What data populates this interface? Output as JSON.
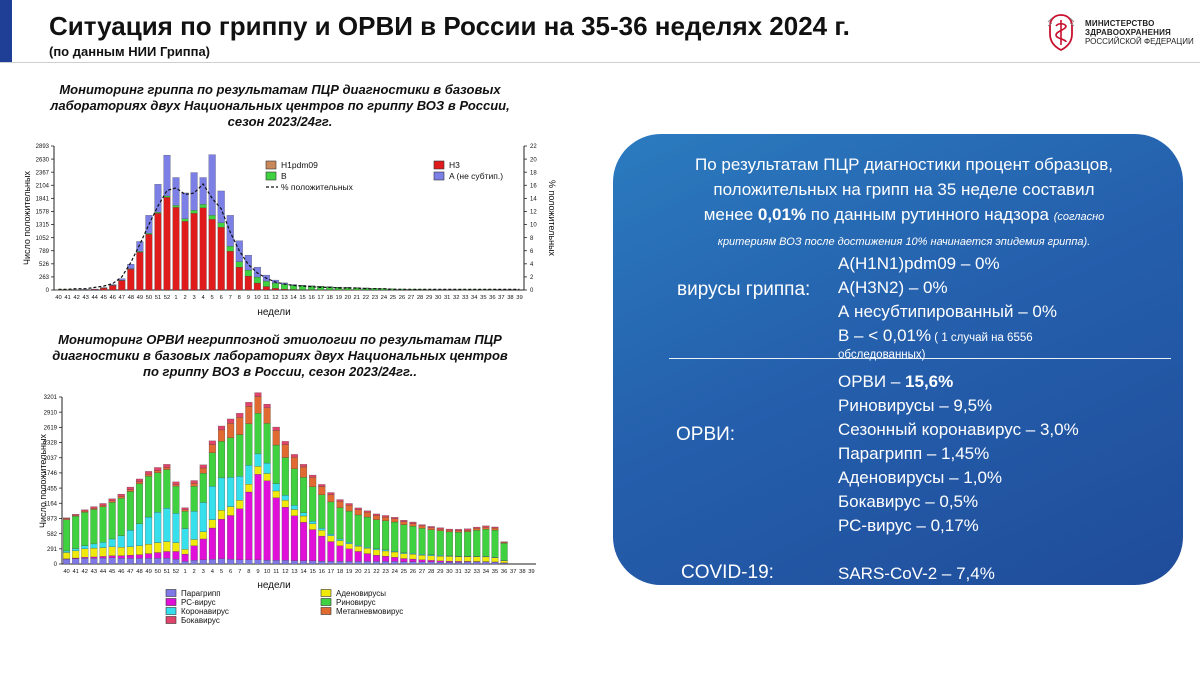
{
  "header": {
    "title": "Ситуация по гриппу и ОРВИ в России на 35-36 неделях 2024 г.",
    "subtitle": "(по данным НИИ Гриппа)",
    "logo": {
      "line1": "МИНИСТЕРСТВО",
      "line2": "ЗДРАВООХРАНЕНИЯ",
      "line3": "РОССИЙСКОЙ ФЕДЕРАЦИИ",
      "icon": "ministry-emblem-icon"
    }
  },
  "chart1": {
    "title_l1": "Мониторинг гриппа по результатам ПЦР диагностики в базовых",
    "title_l2": "лабораториях двух Национальных центров по гриппу ВОЗ в России,",
    "title_l3": "сезон 2023/24гг.",
    "ylabel": "Число положительных",
    "y2label": "% положительных",
    "xlabel": "недели",
    "legend": {
      "h1": "H1pdm09",
      "b": "B",
      "pct": "% положительных",
      "h3": "H3",
      "a": "A (не субтип.)"
    }
  },
  "chart2": {
    "title_l1": "Мониторинг ОРВИ негриппозной этиологии по результатам ПЦР",
    "title_l2": "диагностики в базовых лабораториях двух Национальных центров",
    "title_l3": "по гриппу ВОЗ в России, сезон 2023/24гг..",
    "ylabel": "Число положительных",
    "xlabel": "недели",
    "legend": {
      "paragripp": "Парагрипп",
      "rs": "РС-вирус",
      "corona": "Коронавирус",
      "boka": "Бокавирус",
      "adeno": "Аденовирусы",
      "rino": "Риновирус",
      "metapn": "Метапневмовирус"
    }
  },
  "panel": {
    "intro_a": "По результатам ПЦР диагностики процент образцов,",
    "intro_b": "положительных на грипп на 35 неделе составил",
    "intro_c1": "менее ",
    "intro_c2": "0,01%",
    "intro_c3": " по данным рутинного надзора ",
    "intro_c4": "(согласно",
    "intro_d": "критериям ВОЗ после достижения 10% начинается эпидемия гриппа).",
    "flu_label": "вирусы гриппа:",
    "flu_items": [
      "A(H1N1)pdm09 – 0%",
      "A(H3N2) – 0%",
      "А несубтипированный – 0%"
    ],
    "flu_b": "В – < 0,01%",
    "flu_b_note": " ( 1 случай на 6556",
    "flu_b_note2": "обследованных)",
    "orvi_label": "ОРВИ:",
    "orvi_total_a": "ОРВИ – ",
    "orvi_total_b": "15,6%",
    "orvi_items": [
      "Риновирусы – 9,5%",
      "Сезонный коронавирус – 3,0%",
      "Парагрипп – 1,45%",
      "Аденовирусы – 1,0%",
      "Бокавирус – 0,5%",
      "РС-вирус – 0,17%"
    ],
    "covid_label": "COVID-19:",
    "covid_value": "SARS-CoV-2 – 7,4%"
  },
  "chart_data": [
    {
      "type": "bar",
      "stacked": true,
      "title": "Мониторинг гриппа по результатам ПЦР диагностики в базовых лабораториях двух Национальных центров по гриппу ВОЗ в России, сезон 2023/24гг.",
      "xlabel": "недели",
      "ylabel": "Число положительных",
      "y2label": "% положительных",
      "ylim": [
        0,
        2893
      ],
      "y_ticks": [
        0,
        263,
        526,
        789,
        1052,
        1315,
        1578,
        1841,
        2104,
        2367,
        2630,
        2893
      ],
      "y2lim": [
        0,
        22
      ],
      "y2_ticks": [
        0,
        2,
        4,
        6,
        8,
        10,
        12,
        14,
        16,
        18,
        20,
        22
      ],
      "categories": [
        "40",
        "41",
        "42",
        "43",
        "44",
        "45",
        "46",
        "47",
        "48",
        "49",
        "50",
        "51",
        "52",
        "1",
        "2",
        "3",
        "4",
        "5",
        "6",
        "7",
        "8",
        "9",
        "10",
        "11",
        "12",
        "13",
        "14",
        "15",
        "16",
        "17",
        "18",
        "19",
        "20",
        "21",
        "22",
        "23",
        "24",
        "25",
        "26",
        "27",
        "28",
        "29",
        "30",
        "31",
        "32",
        "33",
        "34",
        "35",
        "36",
        "37",
        "38",
        "39"
      ],
      "series": [
        {
          "name": "H1pdm09",
          "color": "#c8885a",
          "values": [
            0,
            0,
            0,
            0,
            0,
            0,
            0,
            0,
            0,
            0,
            0,
            0,
            0,
            0,
            0,
            0,
            0,
            0,
            0,
            0,
            0,
            0,
            0,
            0,
            0,
            0,
            0,
            0,
            0,
            0,
            0,
            0,
            0,
            0,
            0,
            0,
            0,
            0,
            0,
            0,
            0,
            0,
            0,
            0,
            0,
            0,
            0,
            0,
            0,
            0,
            0,
            0
          ]
        },
        {
          "name": "H3",
          "color": "#e01b1b",
          "values": [
            2,
            3,
            5,
            8,
            15,
            40,
            90,
            190,
            420,
            760,
            1120,
            1540,
            1860,
            1660,
            1380,
            1540,
            1650,
            1420,
            1260,
            780,
            460,
            280,
            140,
            70,
            35,
            18,
            10,
            6,
            4,
            2,
            2,
            1,
            1,
            1,
            0,
            0,
            0,
            0,
            0,
            0,
            0,
            0,
            0,
            0,
            0,
            0,
            0,
            0,
            0,
            0,
            0,
            0
          ]
        },
        {
          "name": "B",
          "color": "#3fd13f",
          "values": [
            1,
            1,
            2,
            2,
            3,
            4,
            6,
            8,
            10,
            15,
            20,
            25,
            30,
            40,
            50,
            60,
            70,
            80,
            90,
            100,
            110,
            120,
            120,
            110,
            105,
            95,
            85,
            80,
            75,
            70,
            60,
            55,
            50,
            45,
            40,
            35,
            30,
            25,
            20,
            15,
            12,
            10,
            8,
            6,
            5,
            4,
            3,
            2,
            1,
            0,
            0,
            0
          ]
        },
        {
          "name": "A (не субтип.)",
          "color": "#7b7fe6",
          "values": [
            0,
            0,
            0,
            1,
            2,
            6,
            14,
            30,
            90,
            200,
            360,
            560,
            820,
            560,
            520,
            760,
            540,
            1220,
            640,
            620,
            420,
            300,
            200,
            120,
            60,
            30,
            15,
            10,
            6,
            4,
            3,
            2,
            2,
            1,
            1,
            0,
            0,
            0,
            0,
            0,
            0,
            0,
            0,
            0,
            0,
            0,
            0,
            0,
            0,
            0,
            0,
            0
          ]
        }
      ],
      "line": {
        "name": "% положительных",
        "axis": "y2",
        "values": [
          0.1,
          0.1,
          0.2,
          0.2,
          0.4,
          0.6,
          1.0,
          2.0,
          4.2,
          7.0,
          10.0,
          12.8,
          15.2,
          15.6,
          14.6,
          14.8,
          16.2,
          14.0,
          12.4,
          8.8,
          6.0,
          3.9,
          2.6,
          1.8,
          1.2,
          0.9,
          0.7,
          0.6,
          0.5,
          0.4,
          0.4,
          0.3,
          0.3,
          0.3,
          0.2,
          0.2,
          0.2,
          0.1,
          0.1,
          0.1,
          0.1,
          0.1,
          0.1,
          0.1,
          0.1,
          0.1,
          0.1,
          0.1,
          0.1,
          0.1,
          0.1,
          0.1
        ]
      },
      "legend": "top-right"
    },
    {
      "type": "bar",
      "stacked": true,
      "title": "Мониторинг ОРВИ негриппозной этиологии по результатам ПЦР диагностики в базовых лабораториях двух Национальных центров по гриппу ВОЗ в России, сезон 2023/24гг..",
      "xlabel": "недели",
      "ylabel": "Число положительных",
      "ylim": [
        0,
        3201
      ],
      "y_ticks": [
        0,
        291,
        582,
        873,
        1164,
        1455,
        1746,
        2037,
        2328,
        2619,
        2910,
        3201
      ],
      "categories": [
        "40",
        "41",
        "42",
        "43",
        "44",
        "45",
        "46",
        "47",
        "48",
        "49",
        "50",
        "51",
        "52",
        "1",
        "2",
        "3",
        "4",
        "5",
        "6",
        "7",
        "8",
        "9",
        "10",
        "11",
        "12",
        "13",
        "14",
        "15",
        "16",
        "17",
        "18",
        "19",
        "20",
        "21",
        "22",
        "23",
        "24",
        "25",
        "26",
        "27",
        "28",
        "29",
        "30",
        "31",
        "32",
        "33",
        "34",
        "35",
        "36",
        "37",
        "38",
        "39"
      ],
      "series": [
        {
          "name": "Парагрипп",
          "color": "#7f79e8",
          "values": [
            90,
            100,
            110,
            110,
            115,
            120,
            110,
            110,
            110,
            110,
            110,
            110,
            90,
            50,
            70,
            80,
            90,
            100,
            90,
            80,
            80,
            80,
            75,
            70,
            70,
            65,
            60,
            60,
            55,
            50,
            50,
            50,
            50,
            50,
            50,
            50,
            50,
            45,
            45,
            40,
            40,
            35,
            35,
            35,
            40,
            40,
            40,
            35,
            20,
            0,
            0,
            0
          ]
        },
        {
          "name": "РС-вирус",
          "color": "#e010d8",
          "values": [
            10,
            15,
            20,
            25,
            30,
            40,
            50,
            60,
            70,
            90,
            110,
            130,
            150,
            140,
            280,
            400,
            600,
            760,
            840,
            980,
            1300,
            1640,
            1520,
            1200,
            1020,
            860,
            740,
            600,
            480,
            380,
            300,
            240,
            190,
            150,
            120,
            100,
            80,
            60,
            50,
            40,
            30,
            25,
            20,
            15,
            10,
            8,
            6,
            5,
            3,
            0,
            0,
            0
          ]
        },
        {
          "name": "Аденовирусы",
          "color": "#f0ea0c",
          "values": [
            120,
            140,
            160,
            170,
            170,
            170,
            160,
            160,
            170,
            180,
            190,
            190,
            170,
            90,
            120,
            140,
            160,
            170,
            170,
            160,
            150,
            150,
            140,
            130,
            130,
            120,
            120,
            110,
            110,
            110,
            100,
            100,
            100,
            100,
            100,
            100,
            100,
            95,
            95,
            90,
            90,
            90,
            90,
            90,
            90,
            90,
            90,
            80,
            40,
            0,
            0,
            0
          ]
        },
        {
          "name": "Коронавирус",
          "color": "#35e0ec",
          "values": [
            30,
            40,
            60,
            80,
            100,
            150,
            220,
            320,
            420,
            520,
            580,
            640,
            560,
            400,
            540,
            560,
            640,
            620,
            560,
            460,
            360,
            240,
            200,
            140,
            100,
            80,
            60,
            50,
            40,
            30,
            30,
            25,
            20,
            20,
            20,
            20,
            15,
            15,
            15,
            15,
            15,
            15,
            10,
            10,
            10,
            10,
            10,
            10,
            5,
            0,
            0,
            0
          ]
        },
        {
          "name": "Риновирус",
          "color": "#3fd13f",
          "values": [
            600,
            620,
            640,
            660,
            680,
            700,
            720,
            740,
            770,
            780,
            760,
            740,
            520,
            330,
            480,
            560,
            640,
            700,
            760,
            800,
            800,
            780,
            760,
            740,
            720,
            700,
            680,
            660,
            640,
            620,
            600,
            600,
            580,
            580,
            560,
            560,
            560,
            540,
            520,
            500,
            480,
            470,
            460,
            460,
            470,
            500,
            520,
            520,
            330,
            0,
            0,
            0
          ]
        },
        {
          "name": "Метапневмовирус",
          "color": "#e06a32",
          "values": [
            20,
            20,
            25,
            25,
            30,
            30,
            35,
            35,
            40,
            40,
            40,
            40,
            30,
            30,
            60,
            100,
            160,
            220,
            280,
            330,
            330,
            320,
            300,
            280,
            250,
            220,
            200,
            180,
            160,
            140,
            120,
            110,
            100,
            90,
            80,
            70,
            60,
            55,
            50,
            45,
            40,
            35,
            30,
            30,
            30,
            35,
            40,
            40,
            20,
            0,
            0,
            0
          ]
        },
        {
          "name": "Бокавирус",
          "color": "#e0446a",
          "values": [
            15,
            20,
            25,
            30,
            35,
            40,
            45,
            50,
            50,
            55,
            60,
            60,
            55,
            40,
            50,
            60,
            70,
            75,
            80,
            80,
            80,
            75,
            70,
            65,
            60,
            55,
            50,
            45,
            40,
            40,
            35,
            35,
            35,
            30,
            30,
            30,
            30,
            30,
            30,
            25,
            25,
            25,
            25,
            25,
            25,
            25,
            25,
            20,
            10,
            0,
            0,
            0
          ]
        }
      ],
      "legend": "bottom"
    }
  ]
}
